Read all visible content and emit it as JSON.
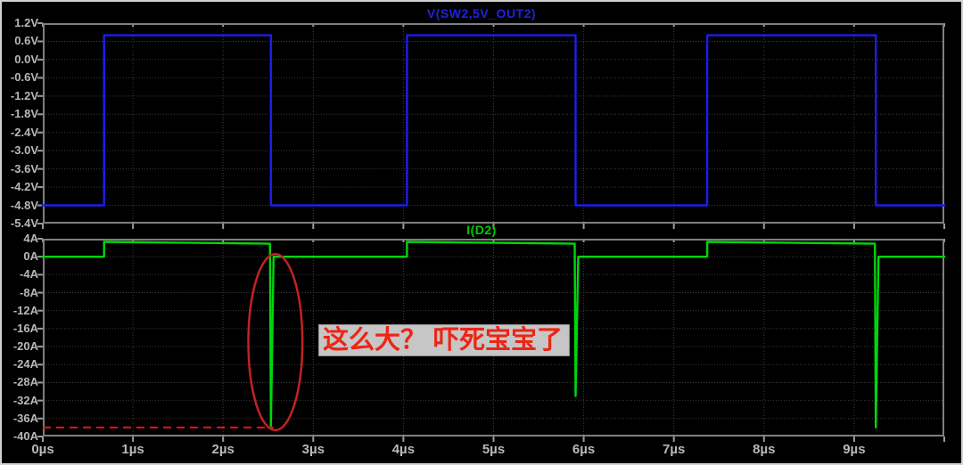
{
  "titles": {
    "top": "V(SW2,5V_OUT2)",
    "bottom": "I(D2)"
  },
  "annotation": {
    "text": "这么大？ 吓死宝宝了",
    "text_color": "#ee2415",
    "box_bg": "#c6c6c6"
  },
  "x_axis": {
    "labels": [
      "0µs",
      "1µs",
      "2µs",
      "3µs",
      "4µs",
      "5µs",
      "6µs",
      "7µs",
      "8µs",
      "9µs"
    ]
  },
  "chart_data": [
    {
      "type": "line",
      "title": "V(SW2,5V_OUT2)",
      "title_color": "#2222dd",
      "xlim": [
        0,
        10
      ],
      "x_unit": "µs",
      "ylim": [
        -5.4,
        1.2
      ],
      "ytick_step": 0.6,
      "ytick_labels": [
        "1.2V",
        "0.6V",
        "0.0V",
        "-0.6V",
        "-1.2V",
        "-1.8V",
        "-2.4V",
        "-3.0V",
        "-3.6V",
        "-4.2V",
        "-4.8V",
        "-5.4V"
      ],
      "grid": true,
      "legend_position": "top-center-title",
      "series": [
        {
          "name": "V(SW2,5V_OUT2)",
          "color": "#1d1dee",
          "points": [
            [
              0,
              -4.8
            ],
            [
              0.68,
              -4.8
            ],
            [
              0.68,
              0.8
            ],
            [
              2.53,
              0.8
            ],
            [
              2.53,
              -4.8
            ],
            [
              4.04,
              -4.8
            ],
            [
              4.04,
              0.8
            ],
            [
              5.91,
              0.8
            ],
            [
              5.91,
              -4.8
            ],
            [
              7.37,
              -4.8
            ],
            [
              7.37,
              0.8
            ],
            [
              9.24,
              0.8
            ],
            [
              9.24,
              -4.8
            ],
            [
              10,
              -4.8
            ]
          ]
        }
      ]
    },
    {
      "type": "line",
      "title": "I(D2)",
      "title_color": "#00cc00",
      "xlim": [
        0,
        10
      ],
      "x_unit": "µs",
      "ylim": [
        -40,
        4
      ],
      "ytick_step": 4,
      "ytick_labels": [
        "4A",
        "0A",
        "-4A",
        "-8A",
        "-12A",
        "-16A",
        "-20A",
        "-24A",
        "-28A",
        "-32A",
        "-36A",
        "-40A"
      ],
      "grid": true,
      "legend_position": "top-center-title",
      "series": [
        {
          "name": "I(D2)",
          "color": "#00d60c",
          "points": [
            [
              0,
              0
            ],
            [
              0.68,
              0
            ],
            [
              0.68,
              3.3
            ],
            [
              1.4,
              3.15
            ],
            [
              2.1,
              3.0
            ],
            [
              2.52,
              2.9
            ],
            [
              2.53,
              -38
            ],
            [
              2.56,
              0
            ],
            [
              4.04,
              0
            ],
            [
              4.04,
              3.3
            ],
            [
              4.8,
              3.15
            ],
            [
              5.5,
              3.0
            ],
            [
              5.9,
              2.9
            ],
            [
              5.91,
              -31
            ],
            [
              5.94,
              0
            ],
            [
              7.37,
              0
            ],
            [
              7.37,
              3.3
            ],
            [
              8.1,
              3.15
            ],
            [
              8.8,
              3.0
            ],
            [
              9.23,
              2.9
            ],
            [
              9.24,
              -38
            ],
            [
              9.27,
              0
            ],
            [
              10,
              0
            ]
          ]
        }
      ],
      "annotations": {
        "dashed_line": {
          "y": -38,
          "x_from": 0,
          "x_to": 2.56,
          "color": "#ee1111"
        },
        "ellipse": {
          "cx": 2.58,
          "cy": -19,
          "rx": 0.3,
          "ry": 19.6,
          "color": "#c32222"
        },
        "note": "这么大？ 吓死宝宝了"
      }
    }
  ]
}
